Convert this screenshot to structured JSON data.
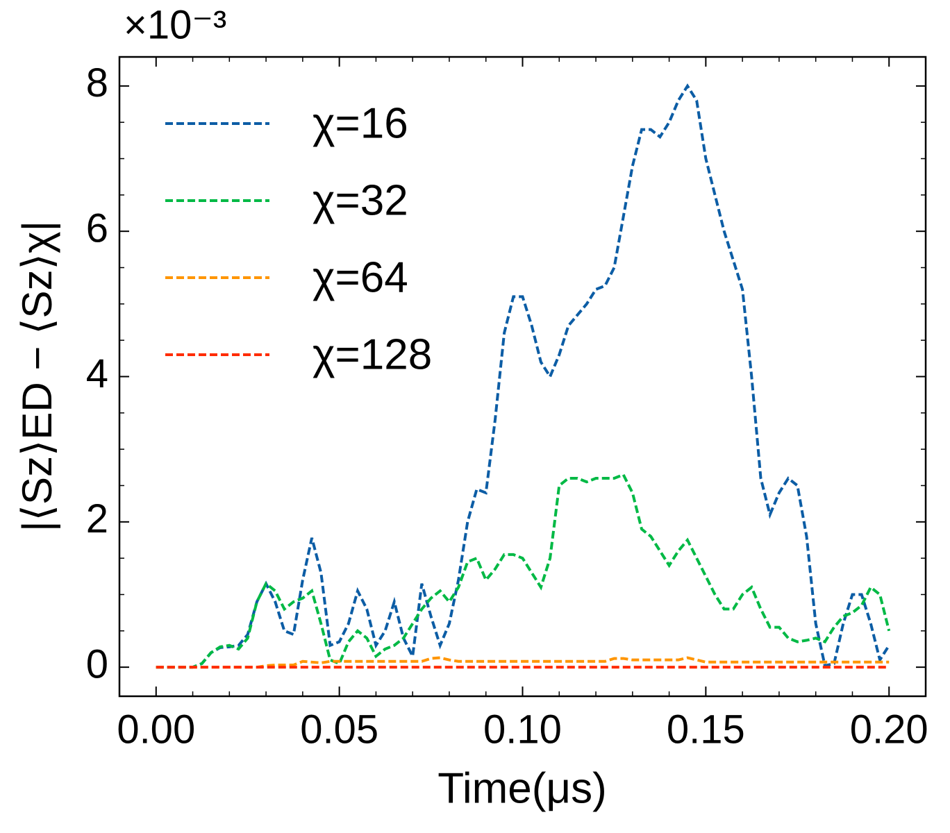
{
  "chart_data": {
    "type": "line",
    "y_label": "|⟨Sz⟩ED − ⟨Sz⟩χ|",
    "x_label": "Time(μs)",
    "y_offset_text": "×10⁻³",
    "x": [
      0,
      0.0025,
      0.005,
      0.0075,
      0.01,
      0.0125,
      0.015,
      0.0175,
      0.02,
      0.0225,
      0.025,
      0.0275,
      0.03,
      0.0325,
      0.035,
      0.0375,
      0.04,
      0.0425,
      0.045,
      0.0475,
      0.05,
      0.0525,
      0.055,
      0.0575,
      0.06,
      0.0625,
      0.065,
      0.0675,
      0.07,
      0.0725,
      0.075,
      0.0775,
      0.08,
      0.0825,
      0.085,
      0.0875,
      0.09,
      0.0925,
      0.095,
      0.0975,
      0.1,
      0.1025,
      0.105,
      0.1075,
      0.11,
      0.1125,
      0.115,
      0.1175,
      0.12,
      0.1225,
      0.125,
      0.1275,
      0.13,
      0.1325,
      0.135,
      0.1375,
      0.14,
      0.1425,
      0.145,
      0.1475,
      0.15,
      0.1525,
      0.155,
      0.1575,
      0.16,
      0.1625,
      0.165,
      0.1675,
      0.17,
      0.1725,
      0.175,
      0.1775,
      0.18,
      0.1825,
      0.185,
      0.1875,
      0.19,
      0.1925,
      0.195,
      0.1975,
      0.2
    ],
    "series": [
      {
        "name": "χ=16",
        "color": "#0c5da5",
        "values": [
          0,
          0,
          0,
          0,
          0,
          0.05,
          0.2,
          0.27,
          0.28,
          0.3,
          0.45,
          0.9,
          1.15,
          0.9,
          0.5,
          0.45,
          1.2,
          1.78,
          1.3,
          0.3,
          0.35,
          0.6,
          1.05,
          0.8,
          0.3,
          0.5,
          0.9,
          0.4,
          0.15,
          1.15,
          0.7,
          0.3,
          0.6,
          1.2,
          2.0,
          2.45,
          2.4,
          3.4,
          4.6,
          5.1,
          5.1,
          4.7,
          4.2,
          4.0,
          4.3,
          4.7,
          4.85,
          5.0,
          5.2,
          5.25,
          5.5,
          6.2,
          6.9,
          7.4,
          7.4,
          7.3,
          7.5,
          7.8,
          8.0,
          7.8,
          7.0,
          6.5,
          6.0,
          5.6,
          5.2,
          4.0,
          2.6,
          2.1,
          2.4,
          2.6,
          2.5,
          1.8,
          0.6,
          0.02,
          0.05,
          0.6,
          1.0,
          1.0,
          0.6,
          0.1,
          0.3
        ]
      },
      {
        "name": "χ=32",
        "color": "#00b945",
        "values": [
          0,
          0,
          0,
          0,
          0,
          0.05,
          0.2,
          0.28,
          0.3,
          0.25,
          0.4,
          0.9,
          1.15,
          1.05,
          0.8,
          0.9,
          0.95,
          1.05,
          0.6,
          0.1,
          0.05,
          0.35,
          0.5,
          0.4,
          0.15,
          0.25,
          0.3,
          0.4,
          0.6,
          0.8,
          0.95,
          1.05,
          0.9,
          1.1,
          1.45,
          1.5,
          1.2,
          1.35,
          1.55,
          1.55,
          1.5,
          1.3,
          1.1,
          1.5,
          2.5,
          2.6,
          2.6,
          2.55,
          2.6,
          2.6,
          2.6,
          2.65,
          2.4,
          1.9,
          1.8,
          1.6,
          1.4,
          1.6,
          1.75,
          1.5,
          1.25,
          1.0,
          0.8,
          0.8,
          1.0,
          1.1,
          0.8,
          0.55,
          0.55,
          0.4,
          0.35,
          0.37,
          0.4,
          0.35,
          0.55,
          0.7,
          0.75,
          0.85,
          1.1,
          1.0,
          0.5
        ]
      },
      {
        "name": "χ=64",
        "color": "#ff9500",
        "values": [
          0,
          0,
          0,
          0,
          0,
          0,
          0,
          0,
          0,
          0,
          0,
          0,
          0.02,
          0.03,
          0.03,
          0.03,
          0.08,
          0.07,
          0.06,
          0.08,
          0.08,
          0.08,
          0.08,
          0.08,
          0.08,
          0.08,
          0.08,
          0.08,
          0.08,
          0.08,
          0.12,
          0.13,
          0.1,
          0.08,
          0.08,
          0.08,
          0.08,
          0.08,
          0.08,
          0.08,
          0.08,
          0.08,
          0.08,
          0.08,
          0.08,
          0.08,
          0.08,
          0.08,
          0.08,
          0.08,
          0.12,
          0.12,
          0.1,
          0.1,
          0.1,
          0.1,
          0.1,
          0.1,
          0.13,
          0.1,
          0.07,
          0.07,
          0.07,
          0.07,
          0.07,
          0.07,
          0.07,
          0.07,
          0.07,
          0.07,
          0.07,
          0.07,
          0.07,
          0.07,
          0.07,
          0.07,
          0.07,
          0.07,
          0.07,
          0.07,
          0.07
        ]
      },
      {
        "name": "χ=128",
        "color": "#ff2c00",
        "values": [
          0,
          0,
          0,
          0,
          0,
          0,
          0,
          0,
          0,
          0,
          0,
          0,
          0,
          0,
          0,
          0,
          0,
          0,
          0,
          0,
          0,
          0,
          0,
          0,
          0,
          0,
          0,
          0,
          0,
          0,
          0,
          0,
          0,
          0,
          0,
          0,
          0,
          0,
          0,
          0,
          0,
          0,
          0,
          0,
          0,
          0,
          0,
          0,
          0,
          0,
          0,
          0,
          0,
          0,
          0,
          0,
          0,
          0,
          0,
          0,
          0,
          0,
          0,
          0,
          0,
          0,
          0,
          0,
          0,
          0,
          0,
          0,
          0,
          0,
          0,
          0,
          0,
          0,
          0,
          0,
          0
        ]
      }
    ],
    "xlim": [
      -0.01,
      0.21
    ],
    "ylim": [
      -0.4,
      8.4
    ],
    "xticks": [
      {
        "value": 0,
        "label": "0.00"
      },
      0.05,
      {
        "value": 0.1,
        "label": "0.10"
      },
      0.15,
      {
        "value": 0.2,
        "label": "0.20"
      }
    ],
    "yticks": [
      0,
      2,
      4,
      6,
      8
    ],
    "xminorticks": [
      0.01,
      0.02,
      0.03,
      0.04,
      0.06,
      0.07,
      0.08,
      0.09,
      0.11,
      0.12,
      0.13,
      0.14,
      0.16,
      0.17,
      0.18,
      0.19
    ],
    "yminorticks": [
      0.5,
      1,
      1.5,
      2.5,
      3,
      3.5,
      4.5,
      5,
      5.5,
      6.5,
      7,
      7.5
    ],
    "grid": false,
    "legend": "upper left"
  }
}
